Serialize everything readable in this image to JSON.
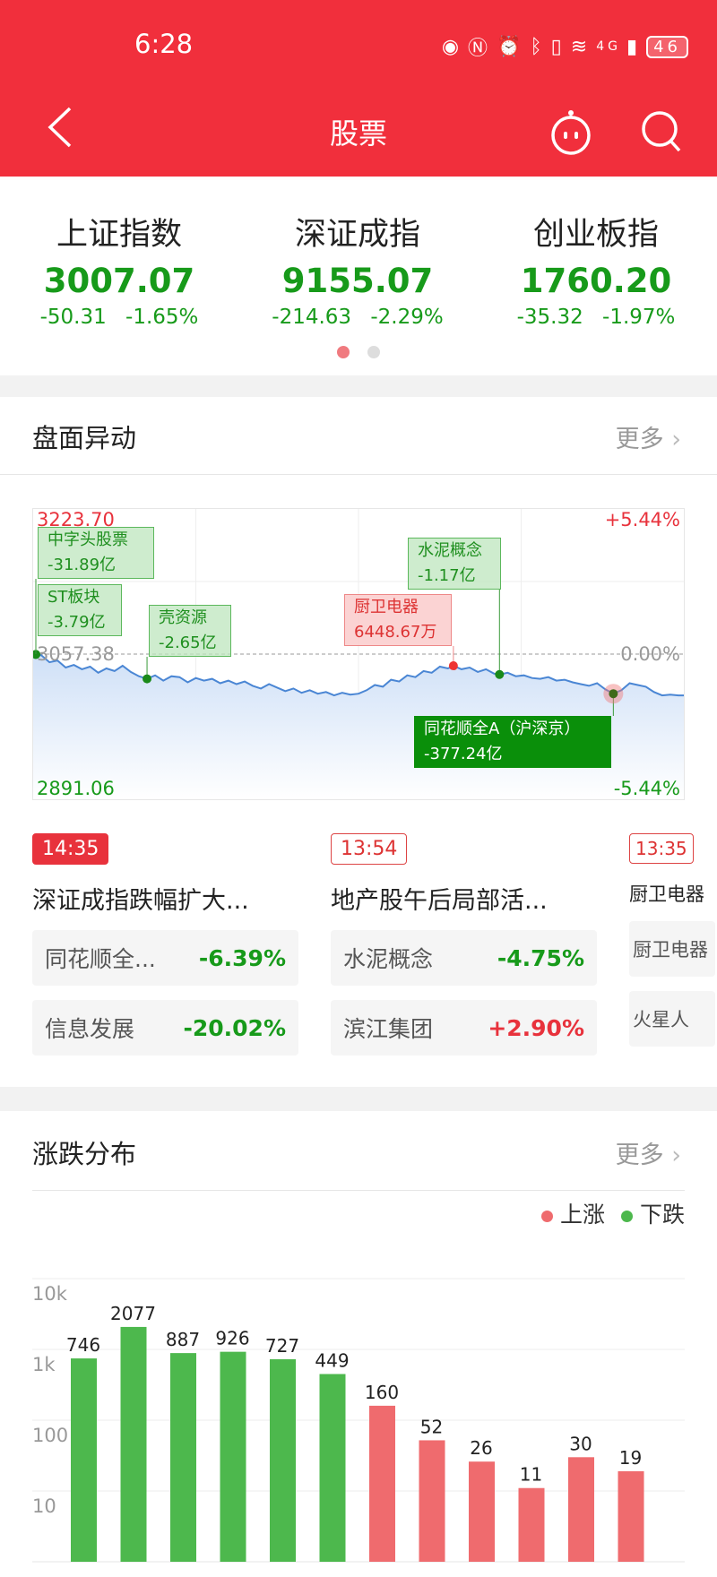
{
  "status_bar": {
    "time": "6:28",
    "icons": [
      "eye-icon",
      "nfc-icon",
      "alarm-icon",
      "bluetooth-icon",
      "vibrate-icon",
      "wifi-icon",
      "signal-4g-icon"
    ],
    "network": "4G",
    "battery": "46"
  },
  "nav": {
    "title": "股票",
    "back_icon": "chevron-left-icon",
    "robot_icon": "robot-icon",
    "search_icon": "search-icon"
  },
  "indices": [
    {
      "name": "上证指数",
      "value": "3007.07",
      "change": "-50.31",
      "pct": "-1.65%"
    },
    {
      "name": "深证成指",
      "value": "9155.07",
      "change": "-214.63",
      "pct": "-2.29%"
    },
    {
      "name": "创业板指",
      "value": "1760.20",
      "change": "-35.32",
      "pct": "-1.97%"
    }
  ],
  "pager": {
    "pages": 2,
    "active": 0
  },
  "movement": {
    "title": "盘面异动",
    "more": "更多",
    "chart": {
      "high": "3223.70",
      "prev_close": "3057.38",
      "low": "2891.06",
      "high_pct": "+5.44%",
      "zero_pct": "0.00%",
      "low_pct": "-5.44%",
      "price_range": [
        2891.06,
        3223.7
      ],
      "prev": 3057.38,
      "minutes": 240,
      "series": [
        [
          0,
          3057
        ],
        [
          3,
          3056
        ],
        [
          6,
          3048
        ],
        [
          9,
          3050
        ],
        [
          12,
          3042
        ],
        [
          15,
          3045
        ],
        [
          18,
          3040
        ],
        [
          21,
          3043
        ],
        [
          24,
          3036
        ],
        [
          27,
          3041
        ],
        [
          30,
          3038
        ],
        [
          33,
          3044
        ],
        [
          36,
          3037
        ],
        [
          39,
          3032
        ],
        [
          42,
          3029
        ],
        [
          45,
          3033
        ],
        [
          48,
          3027
        ],
        [
          51,
          3032
        ],
        [
          54,
          3031
        ],
        [
          57,
          3025
        ],
        [
          60,
          3030
        ],
        [
          63,
          3027
        ],
        [
          66,
          3029
        ],
        [
          69,
          3024
        ],
        [
          72,
          3027
        ],
        [
          75,
          3023
        ],
        [
          78,
          3026
        ],
        [
          81,
          3021
        ],
        [
          84,
          3018
        ],
        [
          87,
          3023
        ],
        [
          90,
          3019
        ],
        [
          93,
          3015
        ],
        [
          96,
          3018
        ],
        [
          99,
          3013
        ],
        [
          102,
          3016
        ],
        [
          105,
          3012
        ],
        [
          108,
          3014
        ],
        [
          111,
          3010
        ],
        [
          114,
          3013
        ],
        [
          117,
          3011
        ],
        [
          120,
          3012
        ],
        [
          123,
          3016
        ],
        [
          126,
          3022
        ],
        [
          129,
          3020
        ],
        [
          132,
          3028
        ],
        [
          135,
          3026
        ],
        [
          138,
          3033
        ],
        [
          141,
          3031
        ],
        [
          144,
          3038
        ],
        [
          147,
          3036
        ],
        [
          150,
          3043
        ],
        [
          153,
          3041
        ],
        [
          155,
          3044
        ],
        [
          158,
          3040
        ],
        [
          161,
          3042
        ],
        [
          164,
          3037
        ],
        [
          167,
          3040
        ],
        [
          170,
          3035
        ],
        [
          172,
          3034
        ],
        [
          175,
          3036
        ],
        [
          178,
          3032
        ],
        [
          181,
          3033
        ],
        [
          184,
          3030
        ],
        [
          187,
          3029
        ],
        [
          190,
          3031
        ],
        [
          193,
          3027
        ],
        [
          196,
          3028
        ],
        [
          199,
          3025
        ],
        [
          202,
          3023
        ],
        [
          205,
          3021
        ],
        [
          208,
          3024
        ],
        [
          211,
          3017
        ],
        [
          214,
          3012
        ],
        [
          217,
          3016
        ],
        [
          220,
          3024
        ],
        [
          223,
          3022
        ],
        [
          226,
          3020
        ],
        [
          229,
          3014
        ],
        [
          232,
          3010
        ],
        [
          235,
          3011
        ],
        [
          238,
          3010
        ],
        [
          240,
          3010
        ]
      ],
      "events": [
        {
          "name": "中字头股票",
          "value": "-31.89亿",
          "t": 0,
          "price": 3057,
          "color": "green"
        },
        {
          "name": "ST板块",
          "value": "-3.79亿",
          "t": 0,
          "price": 3057,
          "color": "green"
        },
        {
          "name": "壳资源",
          "value": "-2.65亿",
          "t": 42,
          "price": 3029,
          "color": "green"
        },
        {
          "name": "厨卫电器",
          "value": "6448.67万",
          "t": 155,
          "price": 3044,
          "color": "red"
        },
        {
          "name": "水泥概念",
          "value": "-1.17亿",
          "t": 172,
          "price": 3034,
          "color": "green"
        },
        {
          "name": "同花顺全A（沪深京）",
          "value": "-377.24亿",
          "t": 214,
          "price": 3012,
          "color": "darkgreen"
        }
      ]
    },
    "cards": [
      {
        "time": "14:35",
        "active": true,
        "headline": "深证成指跌幅扩大...",
        "items": [
          {
            "name": "同花顺全...",
            "pct": "-6.39%",
            "dir": "down"
          },
          {
            "name": "信息发展",
            "pct": "-20.02%",
            "dir": "down"
          }
        ]
      },
      {
        "time": "13:54",
        "active": false,
        "headline": "地产股午后局部活...",
        "items": [
          {
            "name": "水泥概念",
            "pct": "-4.75%",
            "dir": "down"
          },
          {
            "name": "滨江集团",
            "pct": "+2.90%",
            "dir": "up"
          }
        ]
      },
      {
        "time": "13:35",
        "active": false,
        "headline": "厨卫电器",
        "items": [
          {
            "name": "厨卫电器",
            "pct": "",
            "dir": ""
          },
          {
            "name": "火星人",
            "pct": "",
            "dir": ""
          }
        ]
      }
    ]
  },
  "distribution": {
    "title": "涨跌分布",
    "more": "更多",
    "legend": [
      {
        "label": "上涨",
        "color": "#ef6b6e"
      },
      {
        "label": "下跌",
        "color": "#4db84d"
      }
    ]
  },
  "chart_data": {
    "type": "bar",
    "yscale": "log",
    "ylim": [
      1,
      10000
    ],
    "yticks": [
      "10k",
      "1k",
      "100",
      "10"
    ],
    "grid": true,
    "legend": "top-right",
    "values": [
      746,
      2077,
      887,
      926,
      727,
      449,
      160,
      52,
      26,
      11,
      30,
      19
    ],
    "colors": [
      "#4db84d",
      "#4db84d",
      "#4db84d",
      "#4db84d",
      "#4db84d",
      "#4db84d",
      "#ef6b6e",
      "#ef6b6e",
      "#ef6b6e",
      "#ef6b6e",
      "#ef6b6e",
      "#ef6b6e"
    ],
    "labels": [
      "746",
      "2077",
      "887",
      "926",
      "727",
      "449",
      "160",
      "52",
      "26",
      "11",
      "30",
      "19"
    ]
  }
}
